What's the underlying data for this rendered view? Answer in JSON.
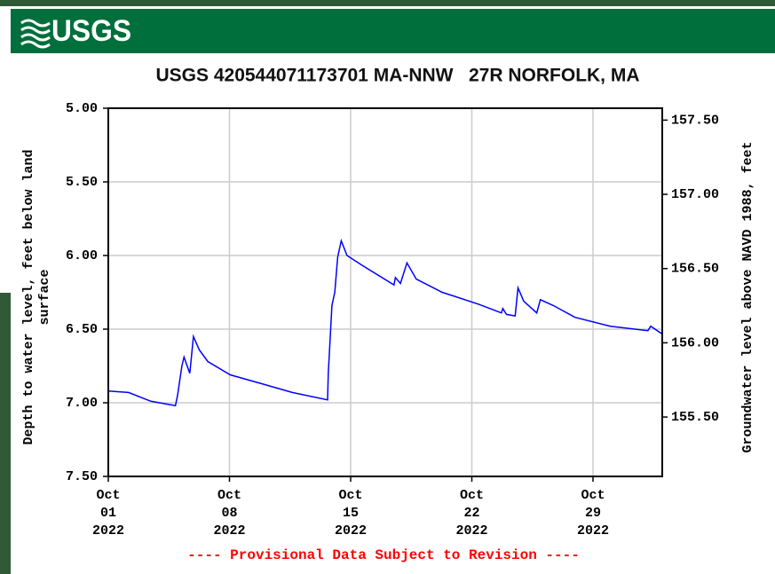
{
  "header": {
    "logo": "USGS"
  },
  "chart_data": {
    "type": "line",
    "title": "USGS 420544071173701 MA-NNW   27R NORFOLK, MA",
    "y_label": [
      "Depth to water level, feet below land",
      "surface"
    ],
    "y2_label": "Groundwater level above NAVD 1988, feet",
    "footnote": "---- Provisional Data Subject to Revision ----",
    "grid": true,
    "xlim": [
      "2022-10-01T00:00",
      "2022-11-02T00:00"
    ],
    "xticks": [
      {
        "value": "2022-10-01T00:00",
        "label": [
          "Oct",
          "01",
          "2022"
        ]
      },
      {
        "value": "2022-10-08T00:00",
        "label": [
          "Oct",
          "08",
          "2022"
        ]
      },
      {
        "value": "2022-10-15T00:00",
        "label": [
          "Oct",
          "15",
          "2022"
        ]
      },
      {
        "value": "2022-10-22T00:00",
        "label": [
          "Oct",
          "22",
          "2022"
        ]
      },
      {
        "value": "2022-10-29T00:00",
        "label": [
          "Oct",
          "29",
          "2022"
        ]
      }
    ],
    "ylim": [
      7.5,
      5.0
    ],
    "yticks": [
      {
        "value": 5.0,
        "label": "5.00"
      },
      {
        "value": 5.5,
        "label": "5.50"
      },
      {
        "value": 6.0,
        "label": "6.00"
      },
      {
        "value": 6.5,
        "label": "6.50"
      },
      {
        "value": 7.0,
        "label": "7.00"
      },
      {
        "value": 7.5,
        "label": "7.50"
      }
    ],
    "y2lim": [
      155.1,
      157.58
    ],
    "y2ticks": [
      {
        "value": 155.5,
        "label": "155.50"
      },
      {
        "value": 156.0,
        "label": "156.00"
      },
      {
        "value": 156.5,
        "label": "156.50"
      },
      {
        "value": 157.0,
        "label": "157.00"
      },
      {
        "value": 157.5,
        "label": "157.50"
      }
    ],
    "series": [
      {
        "color": "#0000ff",
        "x": [
          "2022-10-01T00:00",
          "2022-10-02T04:00",
          "2022-10-03T11:00",
          "2022-10-04T21:00",
          "2022-10-05T00:00",
          "2022-10-05T06:00",
          "2022-10-05T09:00",
          "2022-10-05T17:00",
          "2022-10-05T22:00",
          "2022-10-06T06:00",
          "2022-10-06T18:00",
          "2022-10-08T01:00",
          "2022-10-09T20:00",
          "2022-10-11T15:00",
          "2022-10-13T16:00",
          "2022-10-13T17:00",
          "2022-10-13T22:00",
          "2022-10-14T02:00",
          "2022-10-14T06:00",
          "2022-10-14T11:00",
          "2022-10-14T19:00",
          "2022-10-15T17:00",
          "2022-10-17T12:00",
          "2022-10-17T14:00",
          "2022-10-17T21:00",
          "2022-10-18T06:00",
          "2022-10-18T19:00",
          "2022-10-20T07:00",
          "2022-10-22T09:00",
          "2022-10-23T17:00",
          "2022-10-23T19:00",
          "2022-10-24T00:00",
          "2022-10-24T12:00",
          "2022-10-24T16:00",
          "2022-10-25T00:00",
          "2022-10-25T18:00",
          "2022-10-25T23:00",
          "2022-10-26T17:00",
          "2022-10-27T23:00",
          "2022-10-30T00:00",
          "2022-11-01T04:00",
          "2022-11-01T08:00",
          "2022-11-01T23:00"
        ],
        "values": [
          6.92,
          6.93,
          6.99,
          7.02,
          6.95,
          6.75,
          6.69,
          6.8,
          6.55,
          6.64,
          6.72,
          6.81,
          6.87,
          6.93,
          6.98,
          6.8,
          6.34,
          6.25,
          6.01,
          5.9,
          6.0,
          6.07,
          6.2,
          6.15,
          6.19,
          6.05,
          6.16,
          6.25,
          6.33,
          6.39,
          6.36,
          6.4,
          6.41,
          6.22,
          6.31,
          6.39,
          6.3,
          6.34,
          6.42,
          6.48,
          6.51,
          6.48,
          6.53
        ]
      }
    ]
  }
}
